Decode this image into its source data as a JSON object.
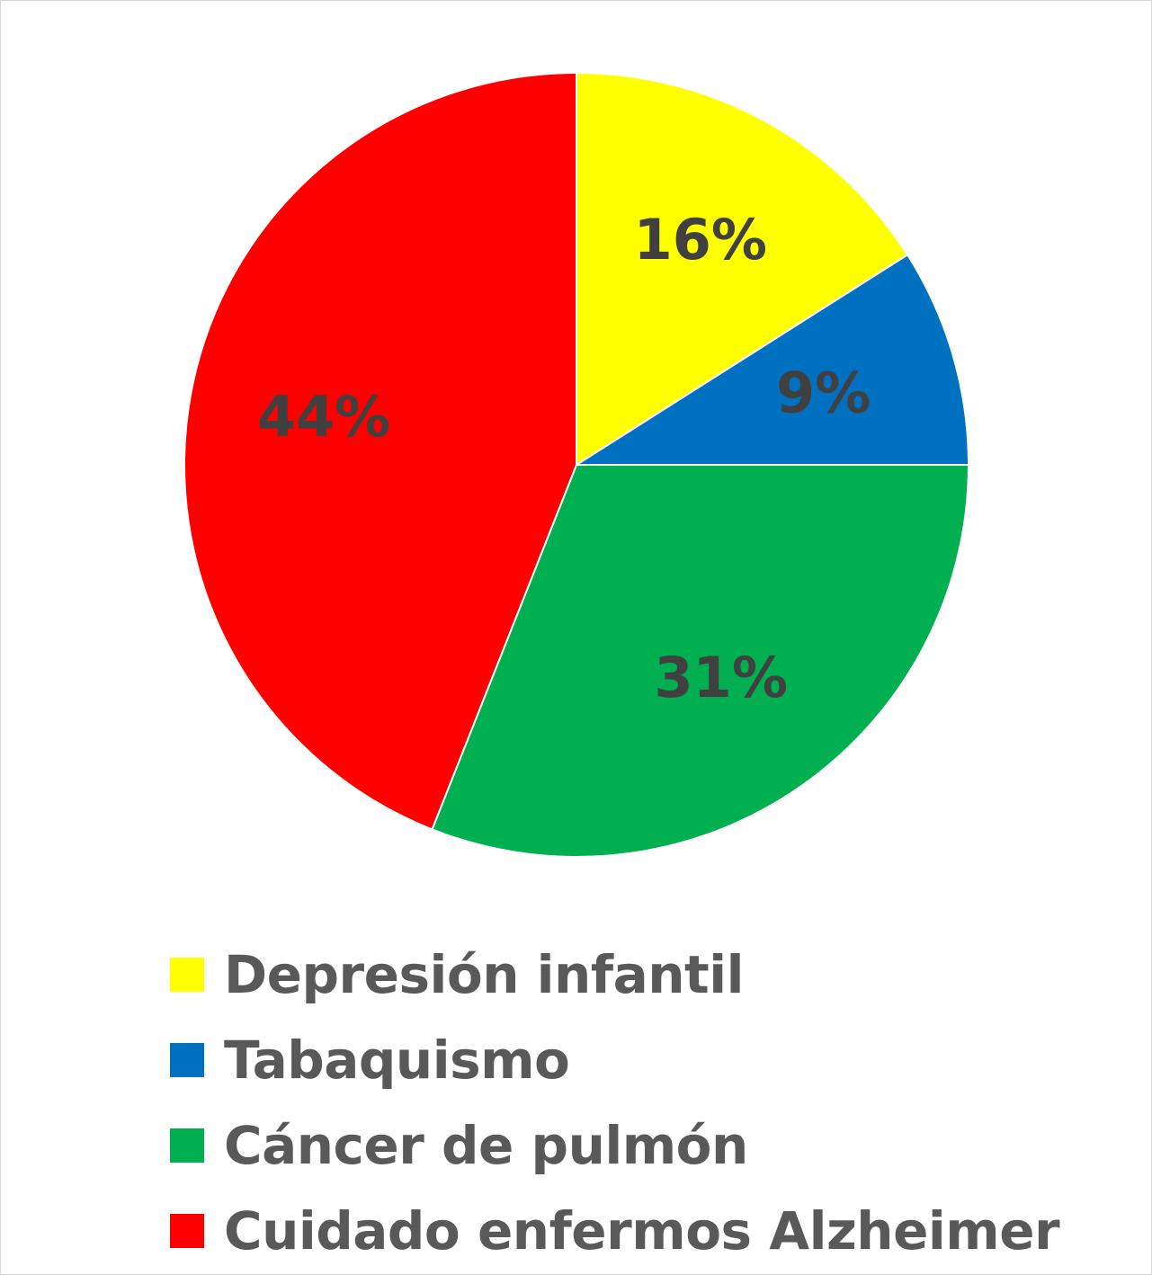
{
  "chart_data": {
    "type": "pie",
    "title": "",
    "slices": [
      {
        "name": "Depresión infantil",
        "value": 16,
        "label": "16%",
        "color": "#FFFF00"
      },
      {
        "name": "Tabaquismo",
        "value": 9,
        "label": "9%",
        "color": "#0070C0"
      },
      {
        "name": "Cáncer de pulmón",
        "value": 31,
        "label": "31%",
        "color": "#00B050"
      },
      {
        "name": "Cuidado enfermos Alzheimer",
        "value": 44,
        "label": "44%",
        "color": "#FF0000"
      }
    ],
    "start_angle": "12 o'clock",
    "direction": "clockwise",
    "legend_position": "bottom"
  }
}
